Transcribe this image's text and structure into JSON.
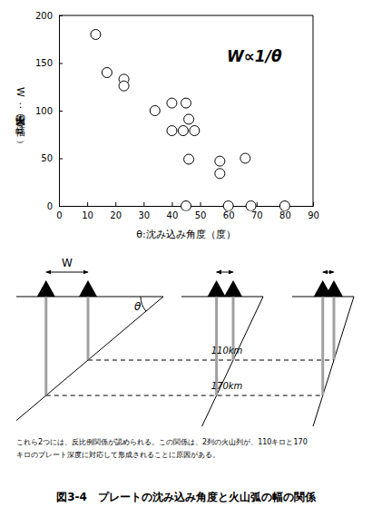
{
  "chart_data": {
    "type": "scatter",
    "x_label": "θ:沈み込み角度（度）",
    "y_label": "W：火山弧の幅（km）",
    "annotation": "W∝1/θ",
    "x": [
      13,
      17,
      23,
      23,
      34,
      40,
      40,
      44,
      45,
      46,
      48,
      46,
      45,
      57,
      57,
      60,
      66,
      68,
      80
    ],
    "y": [
      180,
      140,
      133,
      126,
      100,
      108,
      79,
      79,
      108,
      91,
      79,
      49,
      0,
      47,
      34,
      0,
      50,
      0,
      0
    ],
    "marker": "open-circle",
    "color": "#000000",
    "xlim": [
      0,
      90
    ],
    "xticks": [
      0,
      10,
      20,
      30,
      40,
      50,
      60,
      70,
      80,
      90
    ],
    "ylim": [
      0,
      200
    ],
    "yticks": [
      0,
      50,
      100,
      150,
      200
    ],
    "grid": false
  },
  "diagram": {
    "width_label": "W",
    "angle_label": "θ",
    "depth_labels": [
      "110km",
      "170km"
    ]
  },
  "caption": [
    "これら2つには、反比例関係が認められる。この関係は、2列の火山列が、110キロと170",
    "キロのプレート深度に対応して形成されることに原因がある。"
  ],
  "figure_title": "図3-4　プレートの沈み込み角度と火山弧の幅の関係"
}
